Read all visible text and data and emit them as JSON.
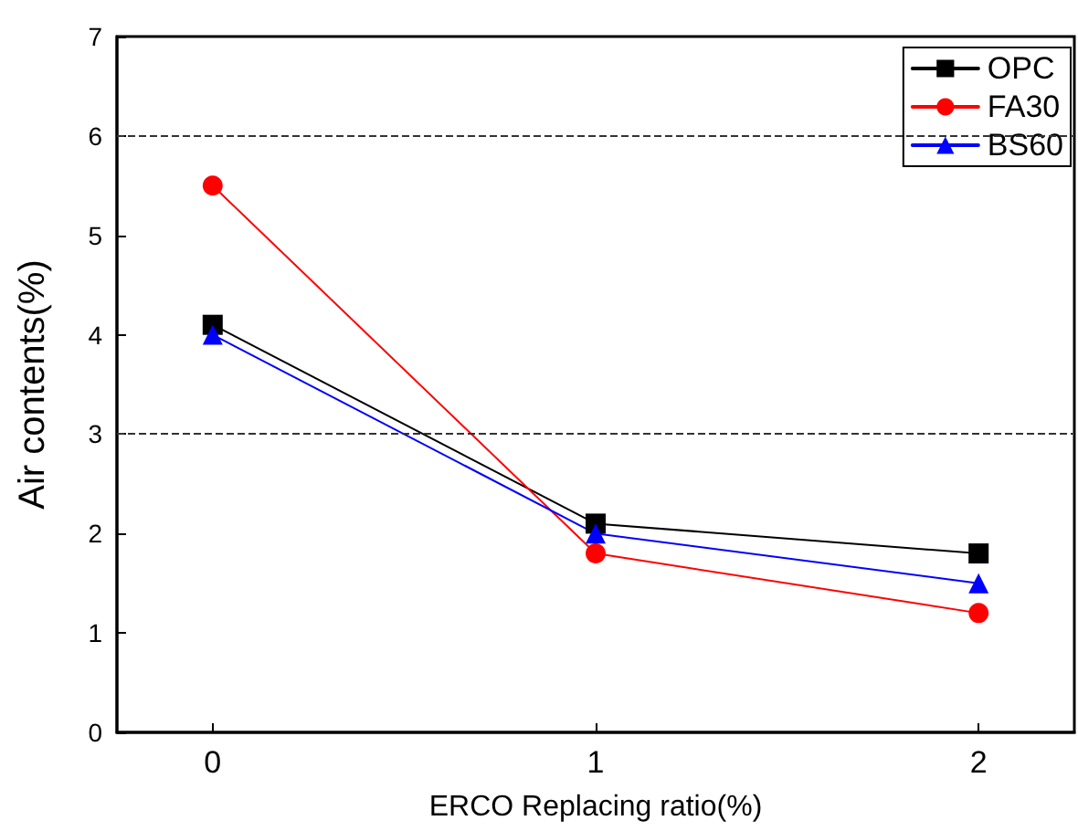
{
  "chart_data": {
    "type": "line",
    "xlabel": "ERCO Replacing ratio(%)",
    "ylabel": "Air contents(%)",
    "x": [
      0,
      1,
      2
    ],
    "xlim": [
      -0.25,
      2.25
    ],
    "xticks": [
      0,
      1,
      2
    ],
    "ylim": [
      0,
      7
    ],
    "yticks": [
      0,
      1,
      2,
      3,
      4,
      5,
      6,
      7
    ],
    "series": [
      {
        "name": "OPC",
        "color": "#000000",
        "marker": "square",
        "values": [
          4.1,
          2.1,
          1.8
        ]
      },
      {
        "name": "FA30",
        "color": "#ff0000",
        "marker": "circle",
        "values": [
          5.5,
          1.8,
          1.2
        ]
      },
      {
        "name": "BS60",
        "color": "#0000ff",
        "marker": "triangle",
        "values": [
          4.0,
          2.0,
          1.5
        ]
      }
    ],
    "ref_lines": [
      {
        "axis": "y",
        "value": 3,
        "line_style": "dashed"
      },
      {
        "axis": "y",
        "value": 6,
        "line_style": "dashed"
      }
    ],
    "legend": "top right",
    "grid": false
  }
}
